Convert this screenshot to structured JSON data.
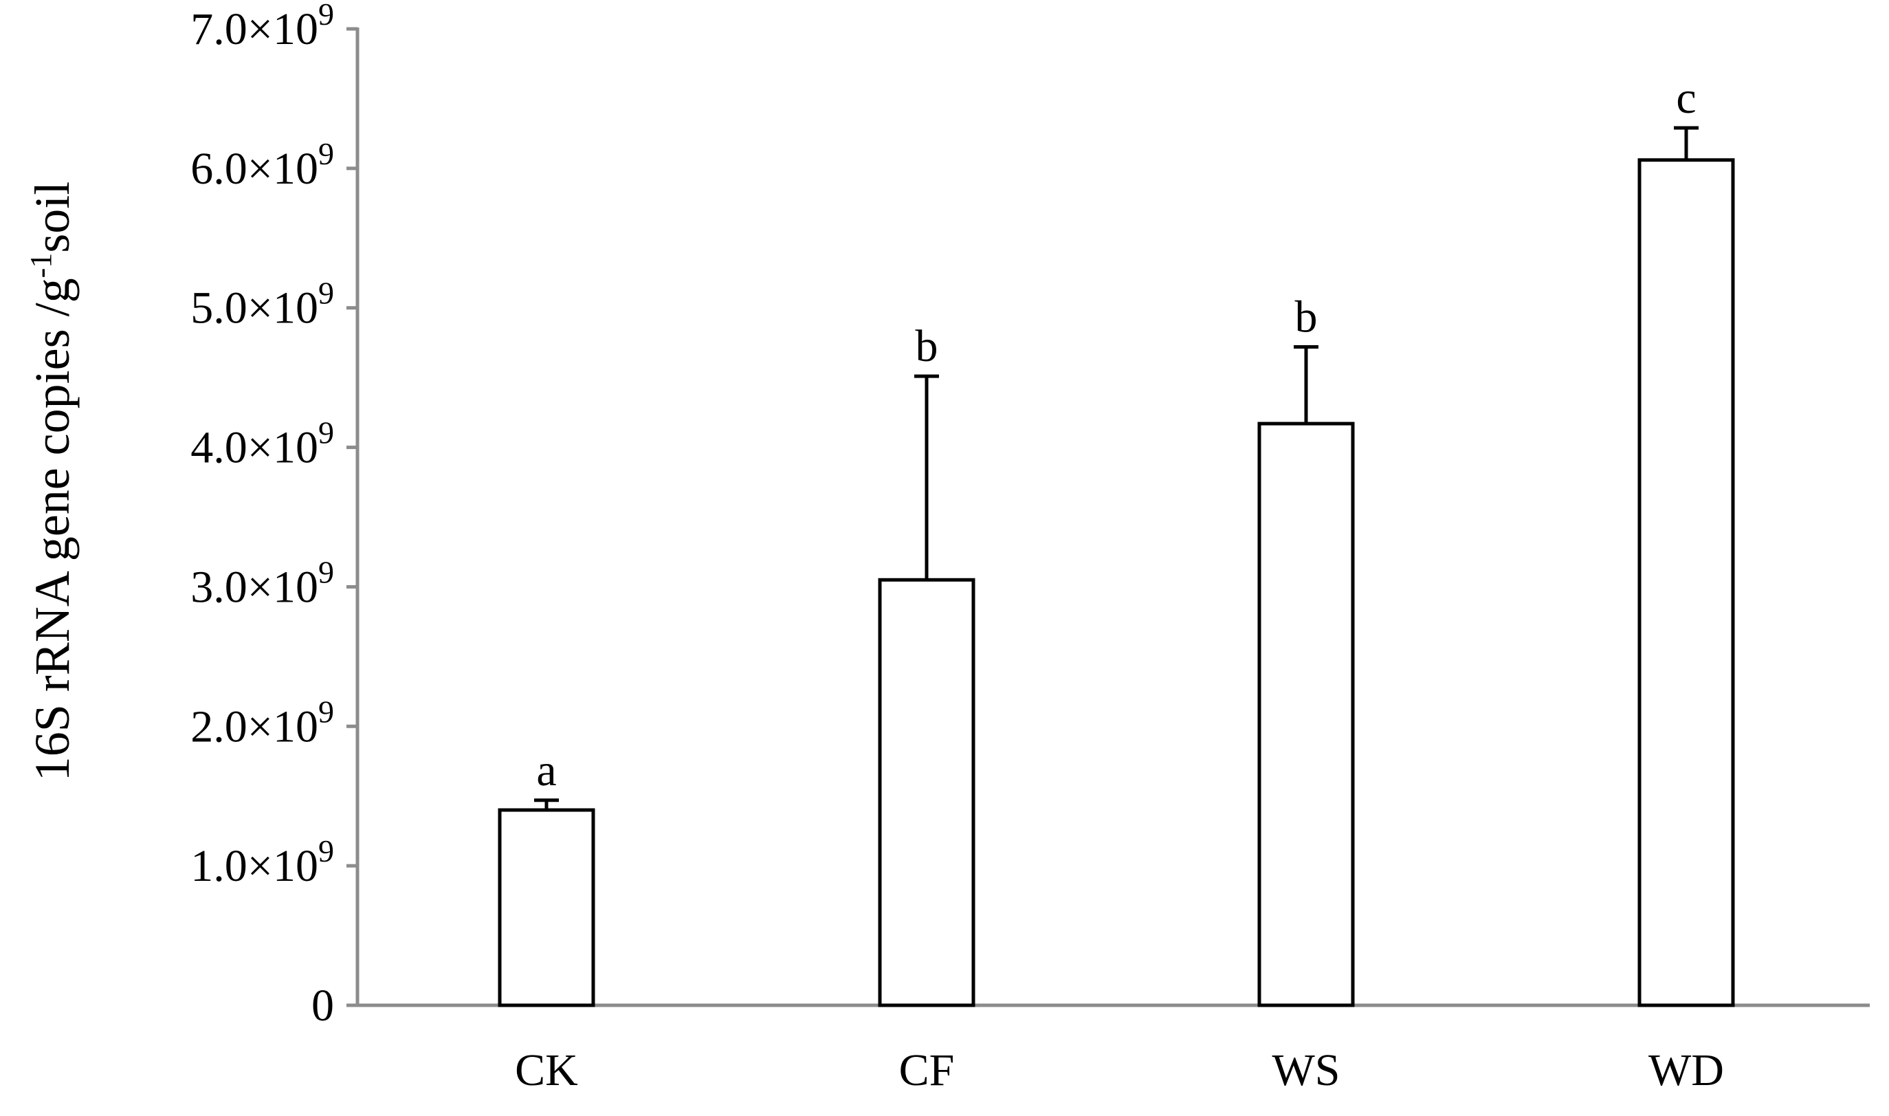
{
  "chart_data": {
    "type": "bar",
    "title": "",
    "xlabel": "",
    "ylabel_parts": {
      "main": "16S rRNA gene copies /g",
      "sup": "-1",
      "tail": "soil"
    },
    "categories": [
      "CK",
      "CF",
      "WS",
      "WD"
    ],
    "values": [
      1400000000.0,
      3050000000.0,
      4170000000.0,
      6060000000.0
    ],
    "error_upper": [
      70000000.0,
      1460000000.0,
      550000000.0,
      230000000.0
    ],
    "significance": [
      "a",
      "b",
      "b",
      "c"
    ],
    "ylim": [
      0,
      7000000000.0
    ],
    "yticks": [
      {
        "value": 0,
        "mantissa": "0",
        "sep": "",
        "base": "",
        "exp": ""
      },
      {
        "value": 1000000000.0,
        "mantissa": "1.0",
        "sep": "×",
        "base": "10",
        "exp": "9"
      },
      {
        "value": 2000000000.0,
        "mantissa": "2.0",
        "sep": "×",
        "base": "10",
        "exp": "9"
      },
      {
        "value": 3000000000.0,
        "mantissa": "3.0",
        "sep": "×",
        "base": "10",
        "exp": "9"
      },
      {
        "value": 4000000000.0,
        "mantissa": "4.0",
        "sep": "×",
        "base": "10",
        "exp": "9"
      },
      {
        "value": 5000000000.0,
        "mantissa": "5.0",
        "sep": "×",
        "base": "10",
        "exp": "9"
      },
      {
        "value": 6000000000.0,
        "mantissa": "6.0",
        "sep": "×",
        "base": "10",
        "exp": "9"
      },
      {
        "value": 7000000000.0,
        "mantissa": "7.0",
        "sep": "×",
        "base": "10",
        "exp": "9"
      }
    ],
    "grid": false,
    "legend": "none",
    "colors": {
      "bar_fill": "#ffffff",
      "bar_stroke": "#000000",
      "axis": "#8c8c8c",
      "error_bar": "#000000"
    }
  }
}
